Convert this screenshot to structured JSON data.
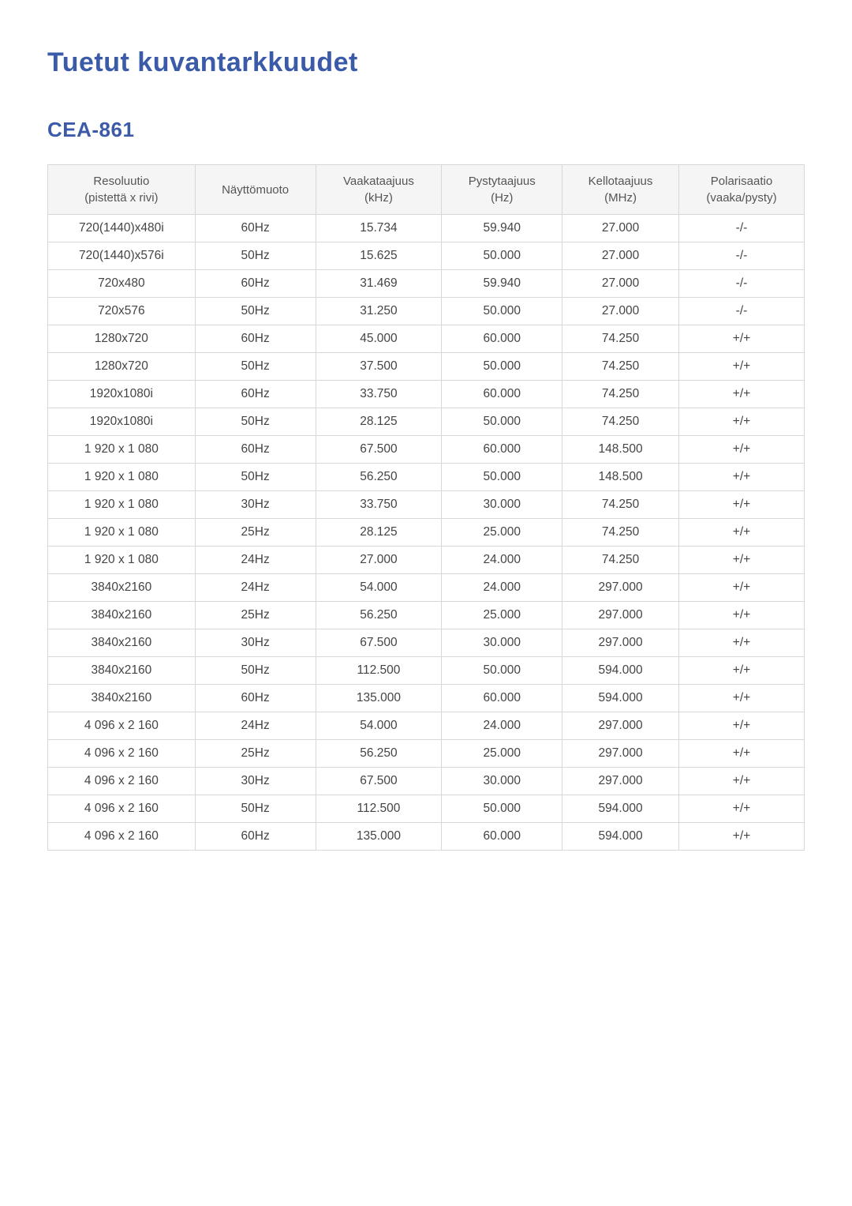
{
  "page": {
    "title": "Tuetut kuvantarkkuudet",
    "section_title": "CEA-861"
  },
  "table": {
    "columns": [
      {
        "line1": "Resoluutio",
        "line2": "(pistettä x rivi)"
      },
      {
        "line1": "Näyttömuoto",
        "line2": ""
      },
      {
        "line1": "Vaakataajuus",
        "line2": "(kHz)"
      },
      {
        "line1": "Pystytaajuus",
        "line2": "(Hz)"
      },
      {
        "line1": "Kellotaajuus",
        "line2": "(MHz)"
      },
      {
        "line1": "Polarisaatio",
        "line2": "(vaaka/pysty)"
      }
    ],
    "rows": [
      [
        "720(1440)x480i",
        "60Hz",
        "15.734",
        "59.940",
        "27.000",
        "-/-"
      ],
      [
        "720(1440)x576i",
        "50Hz",
        "15.625",
        "50.000",
        "27.000",
        "-/-"
      ],
      [
        "720x480",
        "60Hz",
        "31.469",
        "59.940",
        "27.000",
        "-/-"
      ],
      [
        "720x576",
        "50Hz",
        "31.250",
        "50.000",
        "27.000",
        "-/-"
      ],
      [
        "1280x720",
        "60Hz",
        "45.000",
        "60.000",
        "74.250",
        "+/+"
      ],
      [
        "1280x720",
        "50Hz",
        "37.500",
        "50.000",
        "74.250",
        "+/+"
      ],
      [
        "1920x1080i",
        "60Hz",
        "33.750",
        "60.000",
        "74.250",
        "+/+"
      ],
      [
        "1920x1080i",
        "50Hz",
        "28.125",
        "50.000",
        "74.250",
        "+/+"
      ],
      [
        "1 920 x 1 080",
        "60Hz",
        "67.500",
        "60.000",
        "148.500",
        "+/+"
      ],
      [
        "1 920 x 1 080",
        "50Hz",
        "56.250",
        "50.000",
        "148.500",
        "+/+"
      ],
      [
        "1 920 x 1 080",
        "30Hz",
        "33.750",
        "30.000",
        "74.250",
        "+/+"
      ],
      [
        "1 920 x 1 080",
        "25Hz",
        "28.125",
        "25.000",
        "74.250",
        "+/+"
      ],
      [
        "1 920 x 1 080",
        "24Hz",
        "27.000",
        "24.000",
        "74.250",
        "+/+"
      ],
      [
        "3840x2160",
        "24Hz",
        "54.000",
        "24.000",
        "297.000",
        "+/+"
      ],
      [
        "3840x2160",
        "25Hz",
        "56.250",
        "25.000",
        "297.000",
        "+/+"
      ],
      [
        "3840x2160",
        "30Hz",
        "67.500",
        "30.000",
        "297.000",
        "+/+"
      ],
      [
        "3840x2160",
        "50Hz",
        "112.500",
        "50.000",
        "594.000",
        "+/+"
      ],
      [
        "3840x2160",
        "60Hz",
        "135.000",
        "60.000",
        "594.000",
        "+/+"
      ],
      [
        "4 096 x 2 160",
        "24Hz",
        "54.000",
        "24.000",
        "297.000",
        "+/+"
      ],
      [
        "4 096 x 2 160",
        "25Hz",
        "56.250",
        "25.000",
        "297.000",
        "+/+"
      ],
      [
        "4 096 x 2 160",
        "30Hz",
        "67.500",
        "30.000",
        "297.000",
        "+/+"
      ],
      [
        "4 096 x 2 160",
        "50Hz",
        "112.500",
        "50.000",
        "594.000",
        "+/+"
      ],
      [
        "4 096 x 2 160",
        "60Hz",
        "135.000",
        "60.000",
        "594.000",
        "+/+"
      ]
    ]
  },
  "style": {
    "title_color": "#3b5aa8",
    "header_bg": "#f5f5f5",
    "border_color": "#d8d8d8",
    "text_color": "#444444",
    "header_text_color": "#555555",
    "background": "#ffffff"
  }
}
